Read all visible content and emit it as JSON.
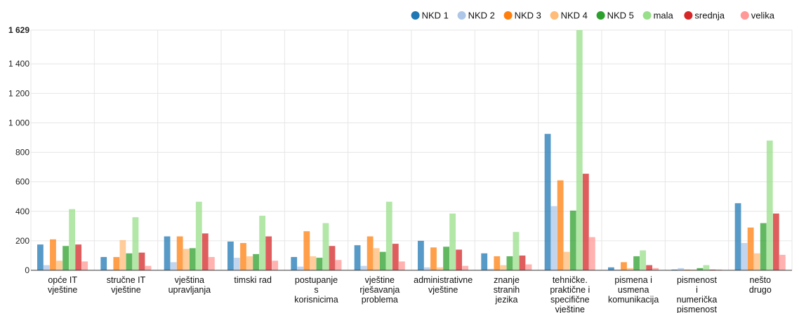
{
  "chart_data": {
    "type": "bar",
    "categories": [
      [
        "opće IT",
        "vještine"
      ],
      [
        "stručne IT",
        "vještine"
      ],
      [
        "vještina",
        "upravljanja"
      ],
      [
        "timski rad"
      ],
      [
        "postupanje",
        "s",
        "korisnicima"
      ],
      [
        "vještine",
        "rješavanja",
        "problema"
      ],
      [
        "administrativne",
        "vještine"
      ],
      [
        "znanje",
        "stranih",
        "jezika"
      ],
      [
        "tehničke.",
        "praktične i",
        "specifične",
        "vještine"
      ],
      [
        "pismena i",
        "usmena",
        "komunikacija"
      ],
      [
        "pismenost",
        "i",
        "numerička",
        "pismenost"
      ],
      [
        "nešto",
        "drugo"
      ]
    ],
    "series": [
      {
        "name": "NKD 1",
        "color": "#1f77b4",
        "values": [
          175,
          90,
          230,
          195,
          90,
          170,
          200,
          115,
          925,
          20,
          5,
          455
        ]
      },
      {
        "name": "NKD 2",
        "color": "#aec7e8",
        "values": [
          35,
          5,
          55,
          85,
          25,
          30,
          20,
          10,
          435,
          5,
          15,
          185
        ]
      },
      {
        "name": "NKD 3",
        "color": "#ff7f0e",
        "values": [
          210,
          90,
          230,
          185,
          265,
          230,
          155,
          95,
          610,
          55,
          5,
          290
        ]
      },
      {
        "name": "NKD 4",
        "color": "#ffbb78",
        "values": [
          65,
          205,
          145,
          95,
          95,
          150,
          20,
          35,
          125,
          15,
          5,
          115
        ]
      },
      {
        "name": "NKD 5",
        "color": "#2ca02c",
        "values": [
          165,
          115,
          150,
          110,
          85,
          125,
          160,
          95,
          405,
          95,
          15,
          320
        ]
      },
      {
        "name": "mala",
        "color": "#98df8a",
        "values": [
          415,
          360,
          465,
          370,
          320,
          465,
          385,
          260,
          1629,
          135,
          35,
          880
        ]
      },
      {
        "name": "srednja",
        "color": "#d62728",
        "values": [
          175,
          120,
          250,
          230,
          165,
          180,
          140,
          100,
          655,
          35,
          5,
          385
        ]
      },
      {
        "name": "velika",
        "color": "#ff9896",
        "values": [
          60,
          30,
          90,
          65,
          70,
          60,
          30,
          40,
          225,
          15,
          5,
          105
        ]
      }
    ],
    "yticks": [
      "0",
      "200",
      "400",
      "600",
      "800",
      "1 000",
      "1 200",
      "1 400",
      "1 629"
    ],
    "ytick_values": [
      0,
      200,
      400,
      600,
      800,
      1000,
      1200,
      1400,
      1629
    ],
    "ylim": [
      0,
      1629
    ],
    "grid": true,
    "legend": "top-right"
  }
}
